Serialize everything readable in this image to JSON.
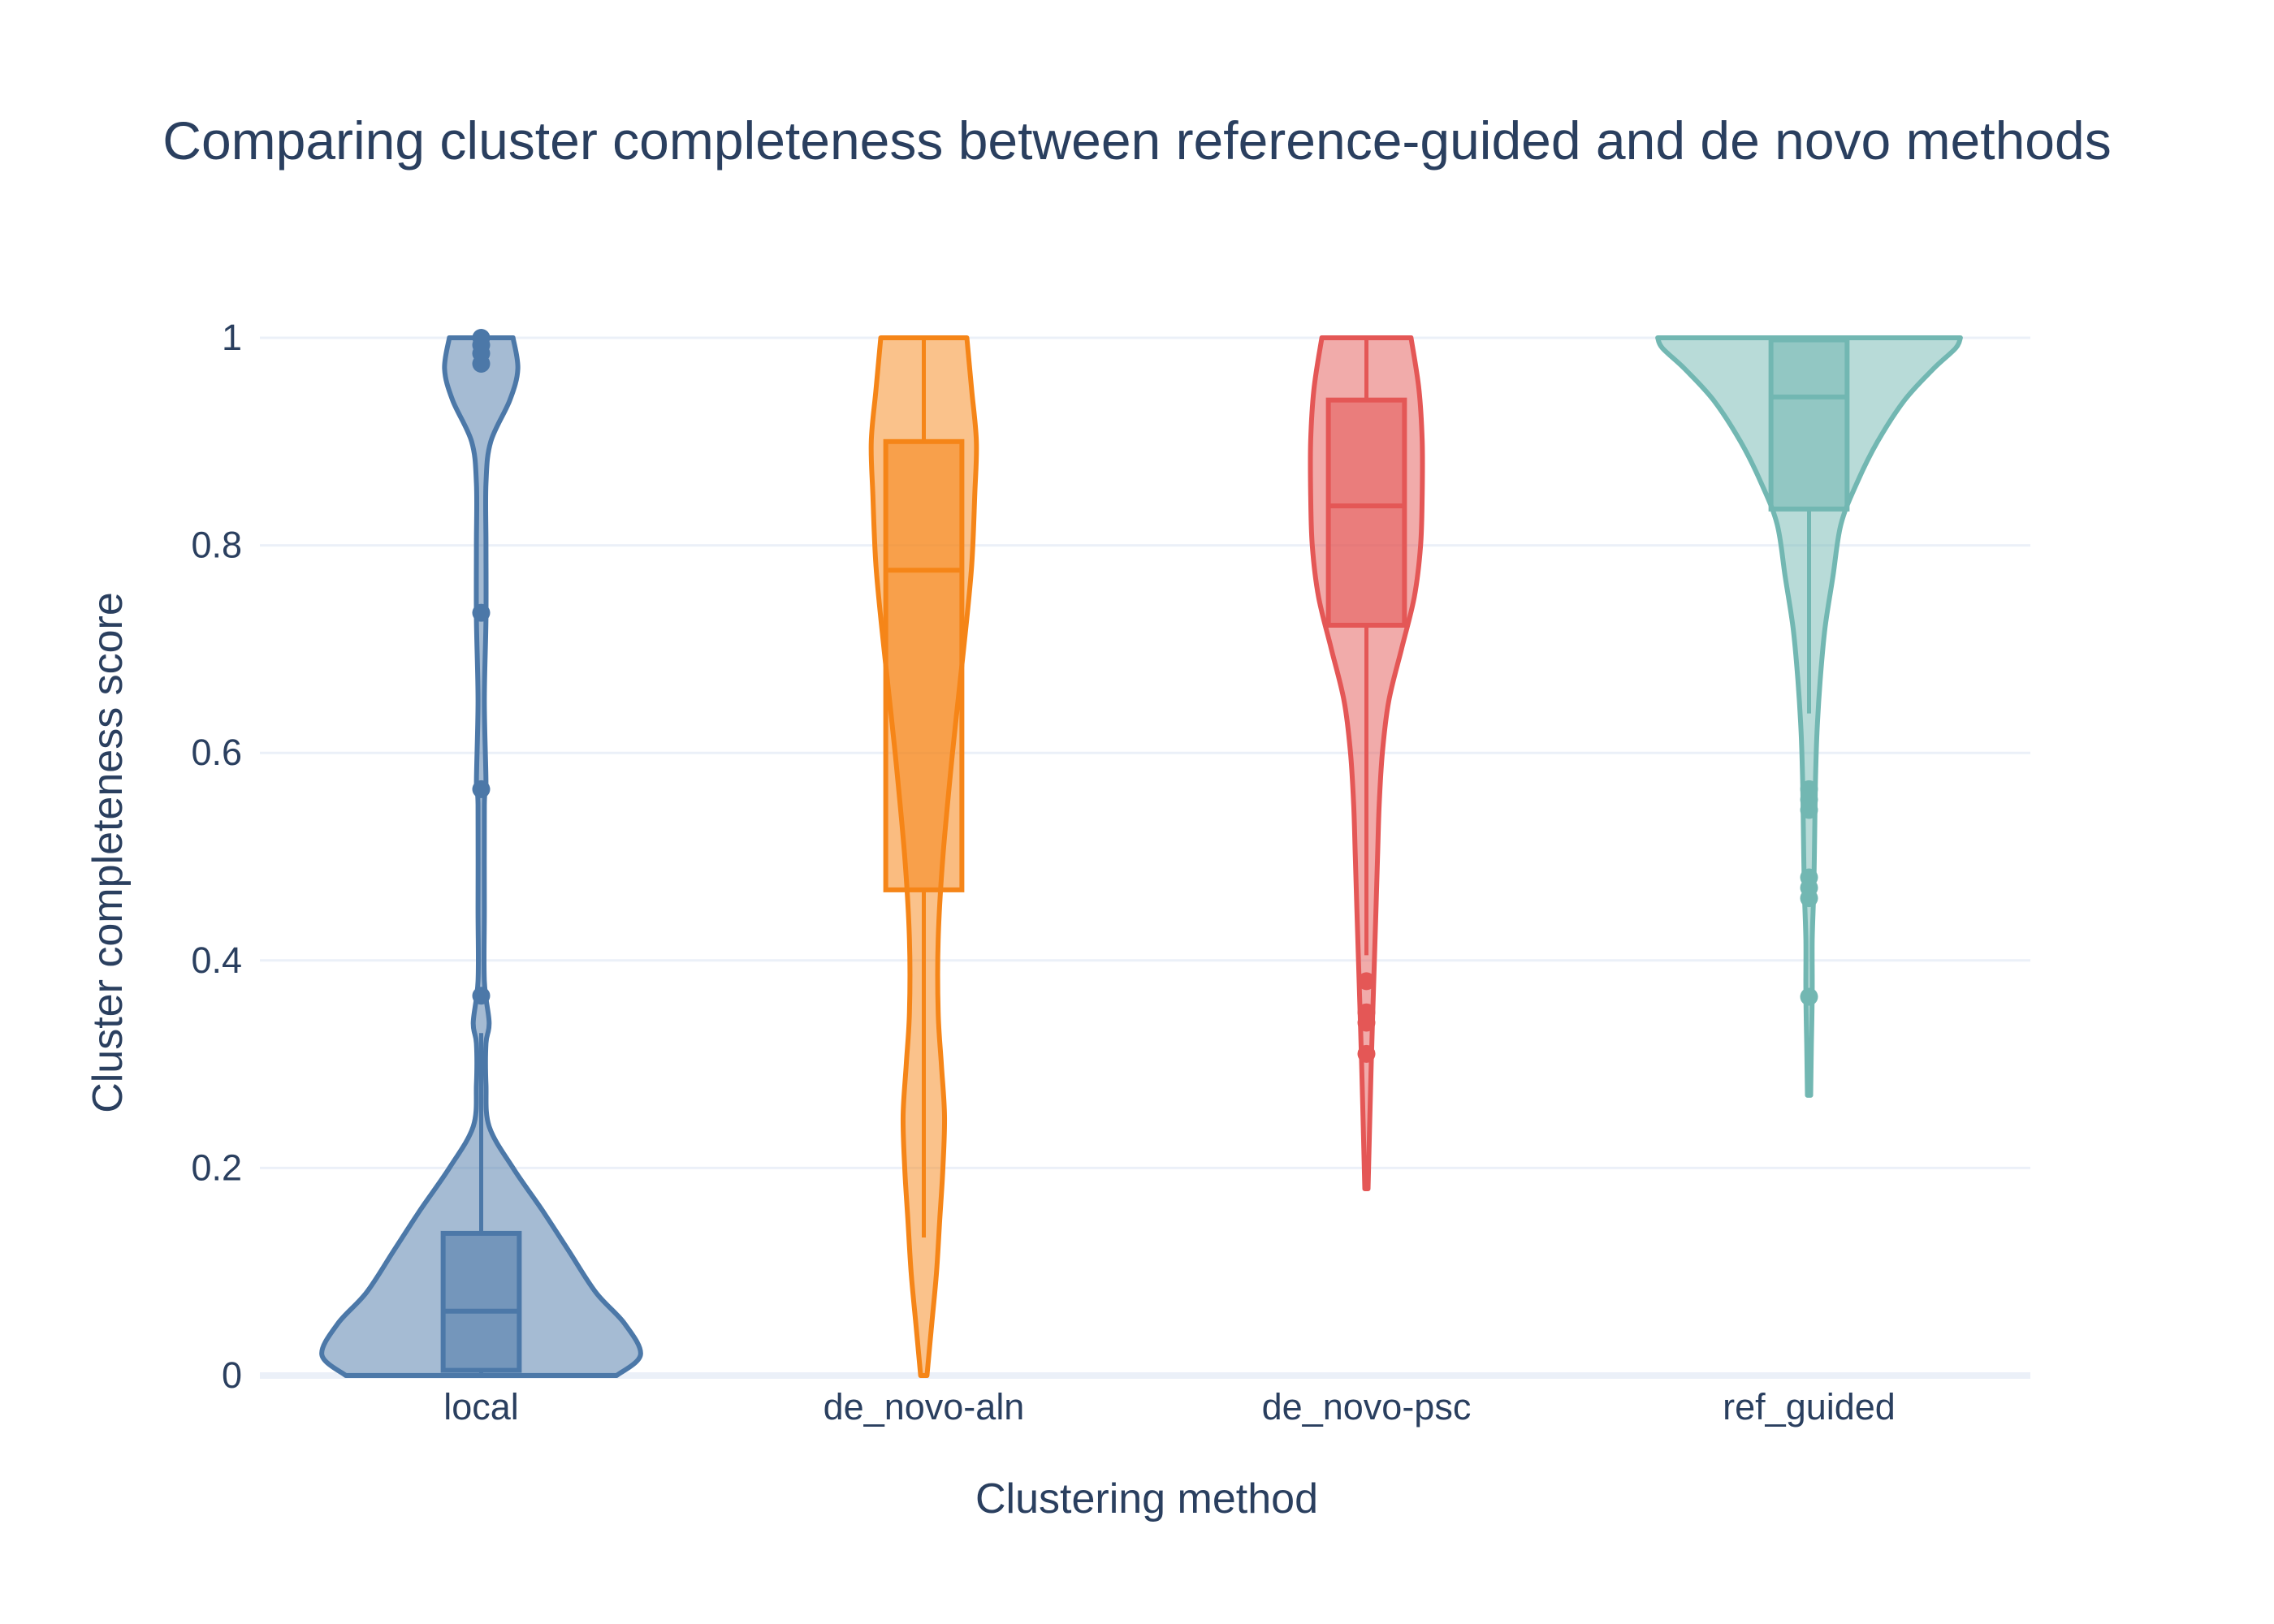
{
  "chart_data": {
    "type": "violin",
    "title": "Comparing cluster completeness between reference-guided and de novo methods",
    "xlabel": "Clustering method",
    "ylabel": "Cluster completeness score",
    "ylim": [
      0,
      1
    ],
    "yticks": [
      "0",
      "0.2",
      "0.4",
      "0.6",
      "0.8",
      "1"
    ],
    "ytick_values": [
      0,
      0.2,
      0.4,
      0.6,
      0.8,
      1
    ],
    "grid": true,
    "legend": "none",
    "categories": [
      "local",
      "de_novo-aln",
      "de_novo-psc",
      "ref_guided"
    ],
    "series": [
      {
        "category": "local",
        "color": "#4c78a8",
        "box": {
          "q1": 0.005,
          "median": 0.062,
          "q3": 0.137,
          "whisker_low": 0.0,
          "whisker_high": 0.33
        },
        "outliers": [
          0.366,
          0.565,
          0.735,
          0.975,
          0.985,
          0.993,
          1.0
        ],
        "density_range": [
          0.0,
          1.0
        ],
        "density": [
          [
            0.0,
            0.85
          ],
          [
            0.02,
            1.0
          ],
          [
            0.05,
            0.9
          ],
          [
            0.08,
            0.72
          ],
          [
            0.12,
            0.55
          ],
          [
            0.16,
            0.38
          ],
          [
            0.2,
            0.2
          ],
          [
            0.24,
            0.05
          ],
          [
            0.28,
            0.03
          ],
          [
            0.32,
            0.03
          ],
          [
            0.34,
            0.05
          ],
          [
            0.38,
            0.02
          ],
          [
            0.45,
            0.02
          ],
          [
            0.55,
            0.02
          ],
          [
            0.57,
            0.03
          ],
          [
            0.65,
            0.02
          ],
          [
            0.73,
            0.03
          ],
          [
            0.8,
            0.03
          ],
          [
            0.86,
            0.03
          ],
          [
            0.9,
            0.06
          ],
          [
            0.94,
            0.18
          ],
          [
            0.97,
            0.23
          ],
          [
            1.0,
            0.2
          ]
        ]
      },
      {
        "category": "de_novo-aln",
        "color": "#f58518",
        "box": {
          "q1": 0.468,
          "median": 0.776,
          "q3": 0.9,
          "whisker_low": 0.133,
          "whisker_high": 1.0
        },
        "outliers": [],
        "density_range": [
          0.0,
          1.0
        ],
        "density": [
          [
            0.0,
            0.02
          ],
          [
            0.05,
            0.05
          ],
          [
            0.1,
            0.08
          ],
          [
            0.15,
            0.1
          ],
          [
            0.2,
            0.12
          ],
          [
            0.25,
            0.13
          ],
          [
            0.3,
            0.11
          ],
          [
            0.35,
            0.09
          ],
          [
            0.42,
            0.09
          ],
          [
            0.5,
            0.12
          ],
          [
            0.6,
            0.18
          ],
          [
            0.7,
            0.25
          ],
          [
            0.78,
            0.3
          ],
          [
            0.85,
            0.32
          ],
          [
            0.9,
            0.33
          ],
          [
            0.95,
            0.3
          ],
          [
            1.0,
            0.27
          ]
        ]
      },
      {
        "category": "de_novo-psc",
        "color": "#e45756",
        "box": {
          "q1": 0.723,
          "median": 0.838,
          "q3": 0.94,
          "whisker_low": 0.405,
          "whisker_high": 1.0
        },
        "outliers": [
          0.31,
          0.34,
          0.35,
          0.38
        ],
        "density_range": [
          0.18,
          1.0
        ],
        "density": [
          [
            0.18,
            0.01
          ],
          [
            0.24,
            0.02
          ],
          [
            0.3,
            0.03
          ],
          [
            0.35,
            0.04
          ],
          [
            0.4,
            0.05
          ],
          [
            0.45,
            0.06
          ],
          [
            0.5,
            0.07
          ],
          [
            0.55,
            0.08
          ],
          [
            0.6,
            0.1
          ],
          [
            0.65,
            0.14
          ],
          [
            0.7,
            0.22
          ],
          [
            0.75,
            0.3
          ],
          [
            0.8,
            0.34
          ],
          [
            0.85,
            0.35
          ],
          [
            0.9,
            0.35
          ],
          [
            0.95,
            0.33
          ],
          [
            1.0,
            0.28
          ]
        ]
      },
      {
        "category": "ref_guided",
        "color": "#72b7b2",
        "box": {
          "q1": 0.835,
          "median": 0.943,
          "q3": 0.998,
          "whisker_low": 0.638,
          "whisker_high": 1.0
        },
        "outliers": [
          0.365,
          0.46,
          0.47,
          0.48,
          0.545,
          0.555,
          0.565
        ],
        "density_range": [
          0.27,
          1.0
        ],
        "density": [
          [
            0.27,
            0.01
          ],
          [
            0.32,
            0.015
          ],
          [
            0.37,
            0.02
          ],
          [
            0.42,
            0.02
          ],
          [
            0.47,
            0.03
          ],
          [
            0.52,
            0.035
          ],
          [
            0.57,
            0.04
          ],
          [
            0.62,
            0.05
          ],
          [
            0.67,
            0.07
          ],
          [
            0.72,
            0.1
          ],
          [
            0.77,
            0.15
          ],
          [
            0.82,
            0.2
          ],
          [
            0.86,
            0.3
          ],
          [
            0.9,
            0.43
          ],
          [
            0.94,
            0.6
          ],
          [
            0.97,
            0.78
          ],
          [
            0.99,
            0.92
          ],
          [
            1.0,
            0.95
          ]
        ]
      }
    ]
  }
}
